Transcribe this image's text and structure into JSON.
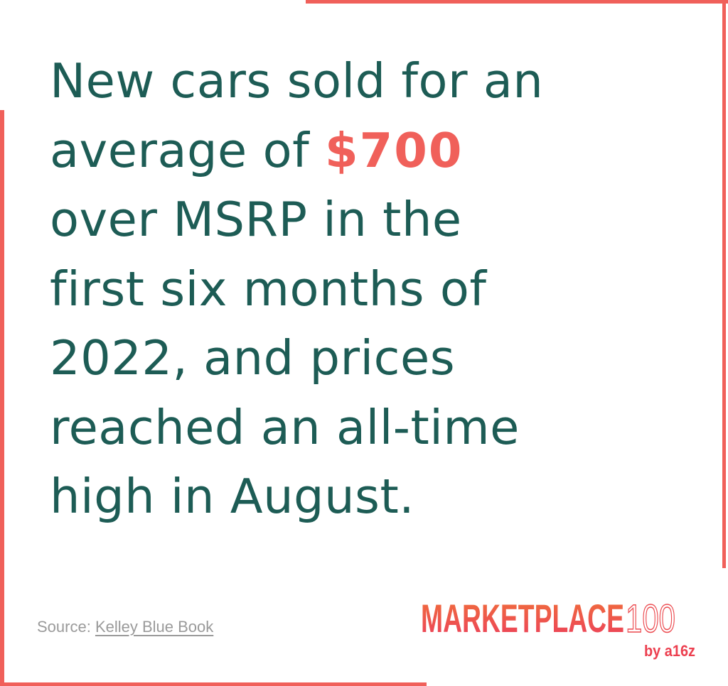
{
  "headline": {
    "lines": [
      "New cars sold for an",
      "average of",
      "over MSRP in the",
      "first six months of",
      "2022, and prices",
      "reached an all-time",
      "high in August."
    ],
    "highlight": "$700"
  },
  "source": {
    "label": "Source:",
    "link": "Kelley Blue Book"
  },
  "logo": {
    "name": "MARKETPLACE",
    "number": "100",
    "byline": "by a16z"
  }
}
